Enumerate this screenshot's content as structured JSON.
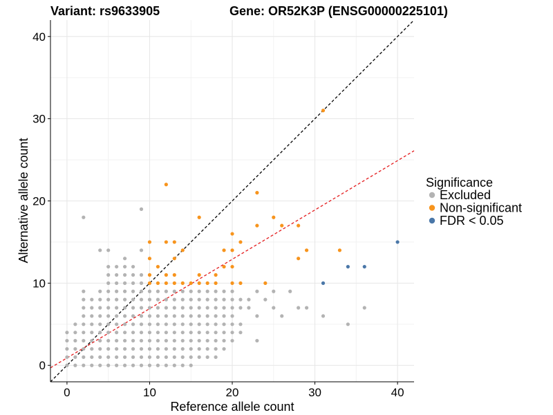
{
  "chart_data": {
    "type": "scatter",
    "title_variant": "Variant: rs9633905",
    "title_gene": "Gene: OR52K3P (ENSG00000225101)",
    "xlabel": "Reference allele count",
    "ylabel": "Alternative allele count",
    "xlim": [
      -2,
      42
    ],
    "ylim": [
      -2,
      42
    ],
    "x_ticks": [
      0,
      10,
      20,
      30,
      40
    ],
    "y_ticks": [
      0,
      10,
      20,
      30,
      40
    ],
    "grid": true,
    "legend": {
      "title": "Significance",
      "position": "right",
      "entries": [
        {
          "label": "Excluded",
          "color": "#b3b3b3"
        },
        {
          "label": "Non-significant",
          "color": "#f7941d"
        },
        {
          "label": "FDR < 0.05",
          "color": "#4a77a8"
        }
      ]
    },
    "reference_lines": [
      {
        "name": "identity",
        "slope": 1,
        "intercept": 0,
        "color": "#000000",
        "dash": true
      },
      {
        "name": "fit",
        "slope": 0.6,
        "intercept": 0.9,
        "color": "#e41a1c",
        "dash": true
      }
    ],
    "series": [
      {
        "name": "Excluded",
        "color": "#b3b3b3",
        "points": [
          [
            0,
            0
          ],
          [
            0,
            1
          ],
          [
            0,
            2
          ],
          [
            0,
            3
          ],
          [
            0,
            4
          ],
          [
            1,
            0
          ],
          [
            1,
            1
          ],
          [
            1,
            2
          ],
          [
            1,
            3
          ],
          [
            1,
            4
          ],
          [
            1,
            5
          ],
          [
            2,
            0
          ],
          [
            2,
            1
          ],
          [
            2,
            2
          ],
          [
            2,
            3
          ],
          [
            2,
            4
          ],
          [
            2,
            5
          ],
          [
            2,
            6
          ],
          [
            2,
            7
          ],
          [
            2,
            8
          ],
          [
            2,
            9
          ],
          [
            2,
            18
          ],
          [
            3,
            0
          ],
          [
            3,
            1
          ],
          [
            3,
            2
          ],
          [
            3,
            3
          ],
          [
            3,
            4
          ],
          [
            3,
            5
          ],
          [
            3,
            6
          ],
          [
            3,
            7
          ],
          [
            3,
            8
          ],
          [
            4,
            0
          ],
          [
            4,
            1
          ],
          [
            4,
            2
          ],
          [
            4,
            3
          ],
          [
            4,
            4
          ],
          [
            4,
            5
          ],
          [
            4,
            6
          ],
          [
            4,
            7
          ],
          [
            4,
            8
          ],
          [
            4,
            9
          ],
          [
            4,
            14
          ],
          [
            5,
            0
          ],
          [
            5,
            1
          ],
          [
            5,
            2
          ],
          [
            5,
            3
          ],
          [
            5,
            4
          ],
          [
            5,
            5
          ],
          [
            5,
            6
          ],
          [
            5,
            7
          ],
          [
            5,
            8
          ],
          [
            5,
            9
          ],
          [
            5,
            10
          ],
          [
            5,
            11
          ],
          [
            5,
            12
          ],
          [
            5,
            14
          ],
          [
            6,
            0
          ],
          [
            6,
            1
          ],
          [
            6,
            2
          ],
          [
            6,
            3
          ],
          [
            6,
            4
          ],
          [
            6,
            5
          ],
          [
            6,
            6
          ],
          [
            6,
            7
          ],
          [
            6,
            8
          ],
          [
            6,
            9
          ],
          [
            6,
            10
          ],
          [
            6,
            11
          ],
          [
            6,
            12
          ],
          [
            7,
            0
          ],
          [
            7,
            1
          ],
          [
            7,
            2
          ],
          [
            7,
            3
          ],
          [
            7,
            4
          ],
          [
            7,
            5
          ],
          [
            7,
            6
          ],
          [
            7,
            7
          ],
          [
            7,
            8
          ],
          [
            7,
            9
          ],
          [
            7,
            10
          ],
          [
            7,
            11
          ],
          [
            7,
            12
          ],
          [
            7,
            13
          ],
          [
            8,
            0
          ],
          [
            8,
            1
          ],
          [
            8,
            2
          ],
          [
            8,
            3
          ],
          [
            8,
            4
          ],
          [
            8,
            5
          ],
          [
            8,
            6
          ],
          [
            8,
            7
          ],
          [
            8,
            8
          ],
          [
            8,
            9
          ],
          [
            8,
            10
          ],
          [
            8,
            11
          ],
          [
            8,
            12
          ],
          [
            9,
            0
          ],
          [
            9,
            1
          ],
          [
            9,
            2
          ],
          [
            9,
            3
          ],
          [
            9,
            4
          ],
          [
            9,
            5
          ],
          [
            9,
            6
          ],
          [
            9,
            7
          ],
          [
            9,
            8
          ],
          [
            9,
            9
          ],
          [
            9,
            10
          ],
          [
            9,
            11
          ],
          [
            9,
            14
          ],
          [
            9,
            19
          ],
          [
            10,
            0
          ],
          [
            10,
            1
          ],
          [
            10,
            2
          ],
          [
            10,
            3
          ],
          [
            10,
            4
          ],
          [
            10,
            5
          ],
          [
            10,
            6
          ],
          [
            10,
            7
          ],
          [
            10,
            8
          ],
          [
            10,
            9
          ],
          [
            11,
            0
          ],
          [
            11,
            1
          ],
          [
            11,
            2
          ],
          [
            11,
            3
          ],
          [
            11,
            4
          ],
          [
            11,
            5
          ],
          [
            11,
            6
          ],
          [
            11,
            7
          ],
          [
            11,
            8
          ],
          [
            11,
            9
          ],
          [
            12,
            0
          ],
          [
            12,
            1
          ],
          [
            12,
            2
          ],
          [
            12,
            3
          ],
          [
            12,
            4
          ],
          [
            12,
            5
          ],
          [
            12,
            6
          ],
          [
            12,
            7
          ],
          [
            12,
            8
          ],
          [
            12,
            9
          ],
          [
            13,
            0
          ],
          [
            13,
            1
          ],
          [
            13,
            2
          ],
          [
            13,
            3
          ],
          [
            13,
            4
          ],
          [
            13,
            5
          ],
          [
            13,
            6
          ],
          [
            13,
            7
          ],
          [
            13,
            8
          ],
          [
            13,
            9
          ],
          [
            14,
            0
          ],
          [
            14,
            1
          ],
          [
            14,
            2
          ],
          [
            14,
            3
          ],
          [
            14,
            4
          ],
          [
            14,
            5
          ],
          [
            14,
            6
          ],
          [
            14,
            7
          ],
          [
            14,
            8
          ],
          [
            14,
            9
          ],
          [
            15,
            0
          ],
          [
            15,
            1
          ],
          [
            15,
            2
          ],
          [
            15,
            3
          ],
          [
            15,
            4
          ],
          [
            15,
            5
          ],
          [
            15,
            6
          ],
          [
            15,
            7
          ],
          [
            15,
            8
          ],
          [
            15,
            9
          ],
          [
            16,
            1
          ],
          [
            16,
            2
          ],
          [
            16,
            3
          ],
          [
            16,
            4
          ],
          [
            16,
            5
          ],
          [
            16,
            6
          ],
          [
            16,
            7
          ],
          [
            16,
            8
          ],
          [
            16,
            9
          ],
          [
            17,
            1
          ],
          [
            17,
            2
          ],
          [
            17,
            3
          ],
          [
            17,
            4
          ],
          [
            17,
            5
          ],
          [
            17,
            6
          ],
          [
            17,
            7
          ],
          [
            17,
            8
          ],
          [
            17,
            9
          ],
          [
            18,
            1
          ],
          [
            18,
            2
          ],
          [
            18,
            3
          ],
          [
            18,
            4
          ],
          [
            18,
            5
          ],
          [
            18,
            6
          ],
          [
            18,
            7
          ],
          [
            18,
            8
          ],
          [
            18,
            9
          ],
          [
            19,
            2
          ],
          [
            19,
            3
          ],
          [
            19,
            4
          ],
          [
            19,
            5
          ],
          [
            19,
            6
          ],
          [
            19,
            7
          ],
          [
            19,
            8
          ],
          [
            19,
            9
          ],
          [
            20,
            3
          ],
          [
            20,
            4
          ],
          [
            20,
            5
          ],
          [
            20,
            6
          ],
          [
            20,
            7
          ],
          [
            20,
            8
          ],
          [
            20,
            9
          ],
          [
            21,
            4
          ],
          [
            21,
            5
          ],
          [
            21,
            7
          ],
          [
            21,
            8
          ],
          [
            22,
            7
          ],
          [
            22,
            8
          ],
          [
            23,
            3
          ],
          [
            23,
            6
          ],
          [
            23,
            9
          ],
          [
            24,
            8
          ],
          [
            25,
            7
          ],
          [
            25,
            9
          ],
          [
            26,
            6
          ],
          [
            27,
            9
          ],
          [
            28,
            7
          ],
          [
            29,
            7
          ],
          [
            31,
            6
          ],
          [
            34,
            5
          ],
          [
            36,
            7
          ]
        ]
      },
      {
        "name": "Non-significant",
        "color": "#f7941d",
        "points": [
          [
            10,
            10
          ],
          [
            10,
            11
          ],
          [
            10,
            13
          ],
          [
            10,
            15
          ],
          [
            11,
            10
          ],
          [
            11,
            12
          ],
          [
            12,
            10
          ],
          [
            12,
            11
          ],
          [
            12,
            15
          ],
          [
            12,
            22
          ],
          [
            13,
            10
          ],
          [
            13,
            11
          ],
          [
            13,
            13
          ],
          [
            13,
            15
          ],
          [
            14,
            10
          ],
          [
            14,
            14
          ],
          [
            15,
            10
          ],
          [
            16,
            10
          ],
          [
            16,
            11
          ],
          [
            16,
            18
          ],
          [
            17,
            10
          ],
          [
            18,
            10
          ],
          [
            18,
            11
          ],
          [
            19,
            12
          ],
          [
            19,
            14
          ],
          [
            20,
            10
          ],
          [
            20,
            12
          ],
          [
            20,
            14
          ],
          [
            20,
            16
          ],
          [
            21,
            10
          ],
          [
            21,
            15
          ],
          [
            23,
            17
          ],
          [
            23,
            21
          ],
          [
            24,
            10
          ],
          [
            25,
            18
          ],
          [
            26,
            17
          ],
          [
            28,
            13
          ],
          [
            28,
            17
          ],
          [
            29,
            14
          ],
          [
            31,
            31
          ],
          [
            33,
            14
          ]
        ]
      },
      {
        "name": "FDR < 0.05",
        "color": "#4a77a8",
        "points": [
          [
            31,
            10
          ],
          [
            34,
            12
          ],
          [
            36,
            12
          ],
          [
            40,
            15
          ]
        ]
      }
    ]
  }
}
